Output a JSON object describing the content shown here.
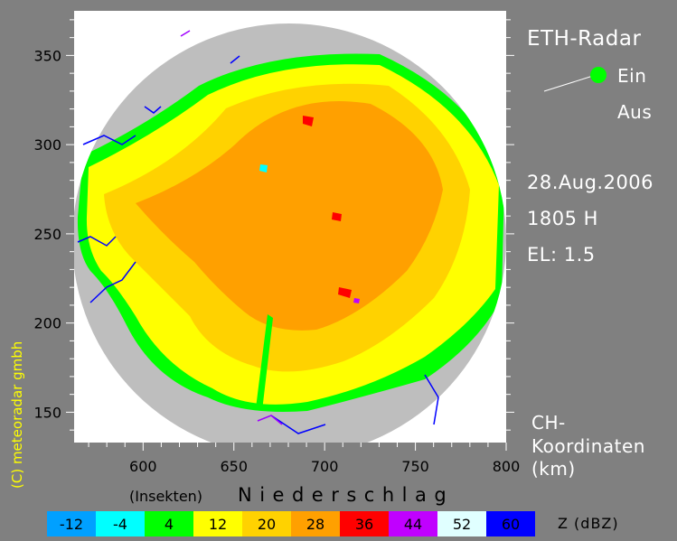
{
  "title": "ETH-Radar",
  "status_legend": {
    "on": "Ein",
    "off": "Aus",
    "on_color": "#00ff00",
    "off_color": "#808080"
  },
  "date": "28.Aug.2006",
  "time": "1805 H",
  "elevation": "EL: 1.5",
  "coordinates": {
    "line1": "CH-",
    "line2": "Koordinaten",
    "unit": "(km)"
  },
  "copyright": "(C) meteoradar gmbh",
  "x_axis": {
    "ticks": [
      600,
      650,
      700,
      750,
      800
    ],
    "range": [
      562,
      800
    ]
  },
  "y_axis": {
    "ticks": [
      150,
      200,
      250,
      300,
      350
    ],
    "range": [
      133,
      375
    ]
  },
  "colorbar": {
    "insects_label": "(Insekten)",
    "precip_label": "Niederschlag",
    "unit_label": "Z (dBZ)",
    "steps": [
      {
        "value": "-12",
        "color": "#00a0ff"
      },
      {
        "value": "-4",
        "color": "#00ffff"
      },
      {
        "value": "4",
        "color": "#00ff00"
      },
      {
        "value": "12",
        "color": "#ffff00"
      },
      {
        "value": "20",
        "color": "#ffd200"
      },
      {
        "value": "28",
        "color": "#ffa000"
      },
      {
        "value": "36",
        "color": "#ff0000"
      },
      {
        "value": "44",
        "color": "#c000ff"
      },
      {
        "value": "52",
        "color": "#e0ffff"
      },
      {
        "value": "60",
        "color": "#0000ff"
      }
    ]
  },
  "colors": {
    "background": "#808080",
    "plot_background": "#ffffff",
    "coverage": "#bebebe",
    "border_lines": "#0000ff",
    "lake_lines": "#a000ff",
    "text": "#ffffff",
    "copyright_text": "#ffff00"
  }
}
